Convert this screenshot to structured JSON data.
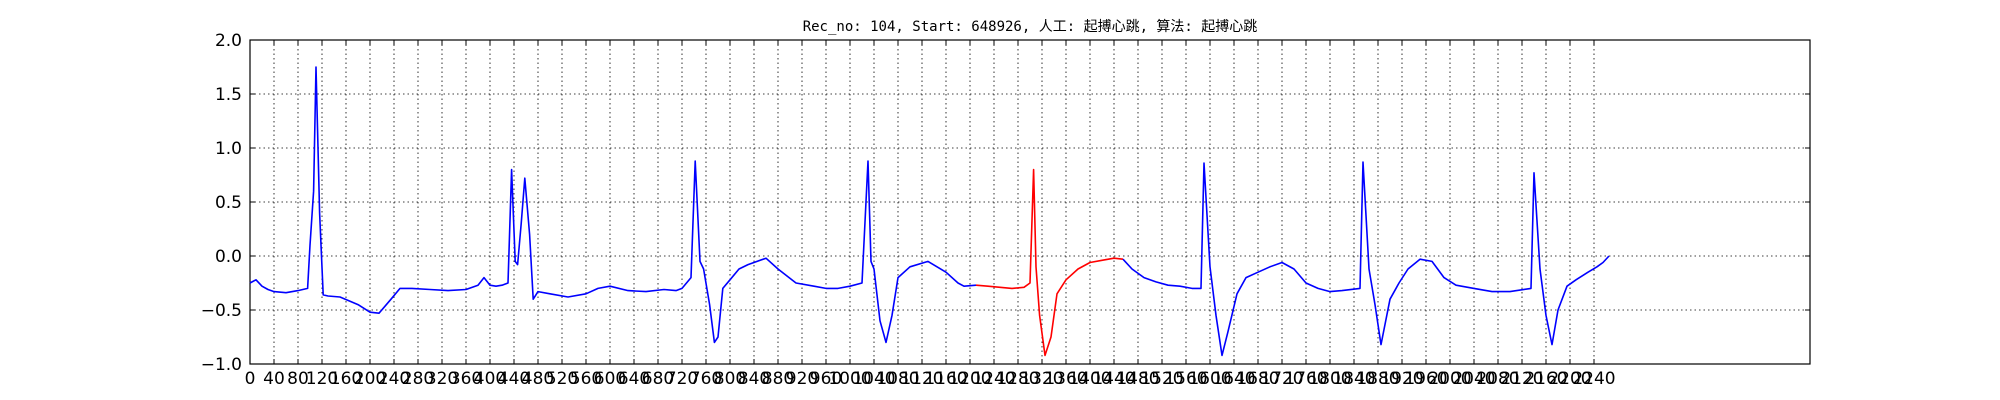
{
  "chart_data": {
    "type": "line",
    "title": "Rec_no: 104, Start: 648926, 人工: 起搏心跳, 算法: 起搏心跳",
    "xlabel": "",
    "ylabel": "",
    "xlim": [
      0,
      2600
    ],
    "ylim": [
      -1.0,
      2.0
    ],
    "grid": true,
    "x_ticks": [
      0,
      40,
      80,
      120,
      160,
      200,
      240,
      280,
      320,
      360,
      400,
      440,
      480,
      520,
      560,
      600,
      640,
      680,
      720,
      760,
      800,
      840,
      880,
      920,
      960,
      1000,
      1040,
      1080,
      1120,
      1160,
      1200,
      1240,
      1280,
      1320,
      1360,
      1400,
      1440,
      1480,
      1520,
      1560,
      1600,
      1640,
      1680,
      1720,
      1760,
      1800,
      1840,
      1880,
      1920,
      1960,
      2000,
      2040,
      2080,
      2120,
      2160,
      2200,
      2240
    ],
    "x_tick_labels": [
      "0",
      "40",
      "80",
      "120",
      "160",
      "200",
      "240",
      "280",
      "320",
      "360",
      "400",
      "440",
      "480",
      "520",
      "560",
      "600",
      "640",
      "680",
      "720",
      "760",
      "800",
      "840",
      "880",
      "920",
      "960",
      "1000",
      "1040",
      "1080",
      "1120",
      "1160",
      "1200",
      "1240",
      "1280",
      "1320",
      "1360",
      "1400",
      "1440",
      "1480",
      "1520",
      "1560",
      "1600",
      "1640",
      "1680",
      "1720",
      "1760",
      "1800",
      "1840",
      "1880",
      "1920",
      "1960",
      "2000",
      "2040",
      "2080",
      "2120",
      "2160",
      "2200",
      "2240"
    ],
    "y_ticks": [
      -1.0,
      -0.5,
      0.0,
      0.5,
      1.0,
      1.5,
      2.0
    ],
    "y_tick_labels": [
      "−1.0",
      "−0.5",
      "0.0",
      "0.5",
      "1.0",
      "1.5",
      "2.0"
    ],
    "series": [
      {
        "color": "#0000ff",
        "x": [
          0,
          10,
          20,
          30,
          40,
          60,
          80,
          96,
          100,
          106,
          110,
          116,
          122,
          130,
          150,
          180,
          200,
          215,
          235,
          250,
          270,
          300,
          330,
          360,
          380,
          390,
          400,
          410,
          420,
          430,
          436,
          442,
          446,
          452,
          458,
          466,
          472,
          480,
          500,
          530,
          560,
          580,
          600,
          630,
          660,
          690,
          710,
          720,
          735,
          742,
          750,
          756,
          766,
          774,
          780,
          788,
          800,
          815,
          830,
          860,
          880,
          910,
          940,
          960,
          980,
          1000,
          1020,
          1030,
          1035,
          1040,
          1050,
          1060,
          1070,
          1080,
          1100,
          1130,
          1160,
          1180,
          1190,
          1210
        ],
        "y": [
          -0.25,
          -0.22,
          -0.28,
          -0.31,
          -0.33,
          -0.34,
          -0.32,
          -0.3,
          0.1,
          0.6,
          1.75,
          0.4,
          -0.36,
          -0.37,
          -0.38,
          -0.45,
          -0.52,
          -0.53,
          -0.4,
          -0.3,
          -0.3,
          -0.31,
          -0.32,
          -0.31,
          -0.27,
          -0.2,
          -0.27,
          -0.28,
          -0.27,
          -0.25,
          0.8,
          -0.05,
          -0.08,
          0.3,
          0.72,
          0.2,
          -0.4,
          -0.33,
          -0.35,
          -0.38,
          -0.35,
          -0.3,
          -0.28,
          -0.32,
          -0.33,
          -0.31,
          -0.32,
          -0.3,
          -0.2,
          0.88,
          -0.05,
          -0.12,
          -0.45,
          -0.8,
          -0.75,
          -0.3,
          -0.22,
          -0.12,
          -0.08,
          -0.02,
          -0.12,
          -0.25,
          -0.28,
          -0.3,
          -0.3,
          -0.28,
          -0.25,
          0.88,
          -0.05,
          -0.12,
          -0.6,
          -0.8,
          -0.55,
          -0.2,
          -0.1,
          -0.05,
          -0.15,
          -0.25,
          -0.28,
          -0.27
        ]
      },
      {
        "color": "#ff0000",
        "x": [
          1210,
          1230,
          1250,
          1270,
          1290,
          1300,
          1306,
          1310,
          1316,
          1325,
          1335,
          1345,
          1360,
          1380,
          1400,
          1420,
          1440,
          1455
        ],
        "y": [
          -0.27,
          -0.28,
          -0.29,
          -0.3,
          -0.29,
          -0.25,
          0.8,
          -0.1,
          -0.55,
          -0.92,
          -0.75,
          -0.35,
          -0.22,
          -0.12,
          -0.06,
          -0.04,
          -0.02,
          -0.03
        ]
      },
      {
        "color": "#0000ff",
        "x": [
          1455,
          1470,
          1490,
          1510,
          1530,
          1550,
          1570,
          1585,
          1590,
          1600,
          1610,
          1620,
          1630,
          1645,
          1660,
          1680,
          1700,
          1720,
          1740,
          1760,
          1780,
          1800,
          1820,
          1850,
          1855,
          1865,
          1875,
          1885,
          1900,
          1915,
          1930,
          1950,
          1970,
          1990,
          2010,
          2040,
          2070,
          2100,
          2135,
          2140,
          2150,
          2160,
          2170,
          2180,
          2195,
          2210,
          2230,
          2245,
          2255,
          2265
        ],
        "y": [
          -0.03,
          -0.12,
          -0.2,
          -0.24,
          -0.27,
          -0.28,
          -0.3,
          -0.3,
          0.86,
          -0.1,
          -0.55,
          -0.92,
          -0.7,
          -0.35,
          -0.2,
          -0.15,
          -0.1,
          -0.06,
          -0.12,
          -0.25,
          -0.3,
          -0.33,
          -0.32,
          -0.3,
          0.87,
          -0.12,
          -0.45,
          -0.82,
          -0.4,
          -0.25,
          -0.12,
          -0.03,
          -0.05,
          -0.2,
          -0.27,
          -0.3,
          -0.33,
          -0.33,
          -0.3,
          0.77,
          -0.12,
          -0.55,
          -0.82,
          -0.5,
          -0.28,
          -0.22,
          -0.15,
          -0.1,
          -0.06,
          0.0
        ]
      }
    ]
  }
}
